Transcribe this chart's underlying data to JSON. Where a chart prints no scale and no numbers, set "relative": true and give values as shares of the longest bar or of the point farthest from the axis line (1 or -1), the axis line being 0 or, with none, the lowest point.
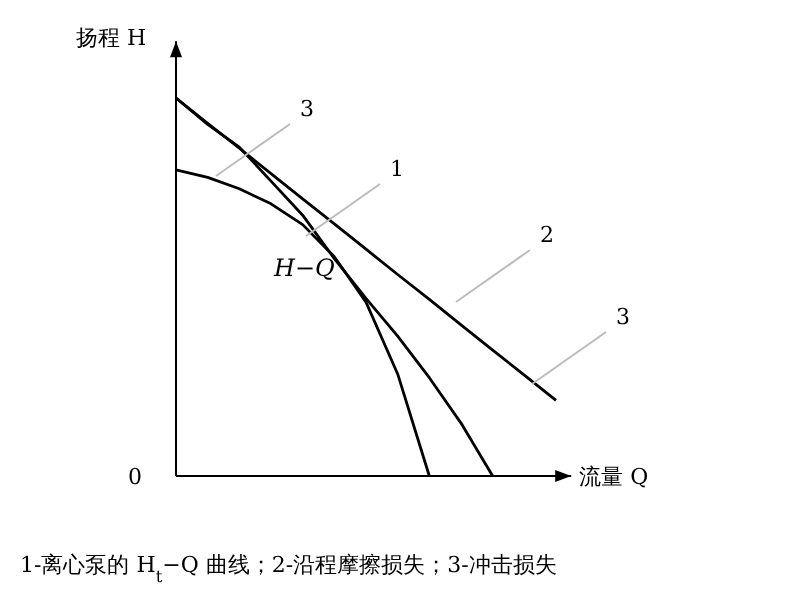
{
  "chart_data": {
    "type": "line",
    "relative": true,
    "xlabel": "流量 Q",
    "ylabel": "扬程 H",
    "categories": [
      null,
      null,
      null,
      null,
      null,
      null,
      null,
      null,
      null,
      null,
      null,
      null,
      null
    ],
    "series": [
      {
        "color": "#000000",
        "values": [
          1,
          0.933,
          0.867,
          0.8,
          0.733,
          0.667,
          0.6,
          0.533,
          0.467,
          0.4,
          0.333,
          0.267,
          0.2
        ]
      },
      {
        "color": "#000000",
        "values": [
          1,
          0.93,
          0.87,
          0.78,
          0.69,
          0.575,
          0.47,
          0.37,
          0.26,
          0.14,
          0,
          null,
          null
        ]
      },
      {
        "color": "#000000",
        "values": [
          0.81,
          0.79,
          0.76,
          0.72,
          0.665,
          0.58,
          0.46,
          0.27,
          0,
          null,
          null,
          null,
          null
        ]
      }
    ],
    "annotations": [
      "3",
      "1",
      "2",
      "3",
      "H−Q",
      "0",
      "1-离心泵的 H$_{t}$−Q 曲线；2-沿程摩擦损失；3-冲击损失"
    ]
  }
}
